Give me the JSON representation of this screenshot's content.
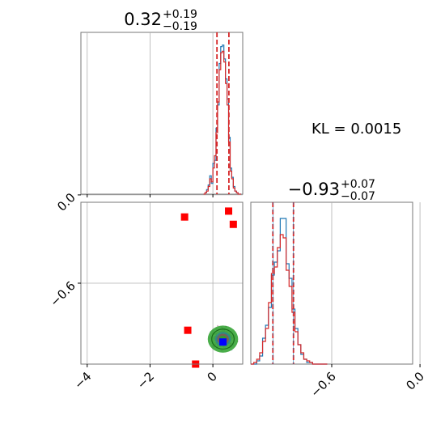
{
  "chart_data": {
    "type": "corner",
    "annotation": "KL = 0.0015",
    "params": [
      {
        "median": "0.32",
        "plus": "+0.19",
        "minus": "−0.19",
        "lo": 0.13,
        "hi": 0.51
      },
      {
        "median": "−0.93",
        "plus": "+0.07",
        "minus": "−0.07",
        "lo": -1.0,
        "hi": -0.86
      }
    ],
    "axes": {
      "x1": {
        "range": [
          -4.2,
          0.95
        ],
        "ticks": [
          -4,
          -2,
          0
        ],
        "tick_labels": [
          "−4",
          "−2",
          "0"
        ]
      },
      "y2": {
        "range": [
          -1.15,
          -0.05
        ],
        "ticks": [
          -0.6,
          0.0
        ],
        "tick_labels": [
          "−0.6",
          "0.0"
        ]
      },
      "x2": {
        "range": [
          -1.15,
          -0.05
        ],
        "ticks": [
          -0.6,
          0.0
        ],
        "tick_labels": [
          "−0.6",
          "0.0"
        ]
      }
    },
    "hist1": {
      "bins": [
        -0.3,
        -0.25,
        -0.2,
        -0.15,
        -0.1,
        -0.05,
        0.0,
        0.05,
        0.1,
        0.15,
        0.2,
        0.25,
        0.3,
        0.35,
        0.4,
        0.45,
        0.5,
        0.55,
        0.6,
        0.65,
        0.7,
        0.75,
        0.8,
        0.85,
        0.9
      ],
      "blue": [
        0.0,
        0.01,
        0.03,
        0.06,
        0.12,
        0.07,
        0.2,
        0.22,
        0.43,
        0.58,
        0.85,
        0.96,
        0.97,
        0.88,
        0.75,
        0.62,
        0.37,
        0.17,
        0.11,
        0.05,
        0.02,
        0.01,
        0.0,
        0.0,
        0.0
      ],
      "red": [
        0.0,
        0.01,
        0.02,
        0.05,
        0.1,
        0.08,
        0.17,
        0.25,
        0.4,
        0.6,
        0.81,
        0.92,
        0.93,
        0.86,
        0.72,
        0.58,
        0.34,
        0.15,
        0.1,
        0.04,
        0.02,
        0.01,
        0.0,
        0.0,
        0.0
      ]
    },
    "hist2": {
      "bins": [
        -1.15,
        -1.13,
        -1.11,
        -1.09,
        -1.07,
        -1.05,
        -1.03,
        -1.01,
        -0.99,
        -0.97,
        -0.95,
        -0.93,
        -0.91,
        -0.89,
        -0.87,
        -0.85,
        -0.83,
        -0.81,
        -0.79,
        -0.77,
        -0.75,
        -0.73,
        -0.71,
        -0.69,
        -0.67,
        -0.65,
        -0.63
      ],
      "blue": [
        0.0,
        0.0,
        0.02,
        0.05,
        0.16,
        0.24,
        0.35,
        0.55,
        0.63,
        0.7,
        0.9,
        0.9,
        0.62,
        0.53,
        0.34,
        0.22,
        0.12,
        0.06,
        0.03,
        0.01,
        0.01,
        0.0,
        0.0,
        0.0,
        0.0,
        0.0
      ],
      "red": [
        0.0,
        0.01,
        0.03,
        0.07,
        0.14,
        0.22,
        0.38,
        0.56,
        0.6,
        0.72,
        0.8,
        0.78,
        0.58,
        0.48,
        0.32,
        0.2,
        0.12,
        0.07,
        0.03,
        0.02,
        0.01,
        0.0,
        0.0,
        0.0,
        0.0,
        0.0
      ]
    },
    "scatter_red_squares": [
      {
        "x": -0.9,
        "y": -0.15
      },
      {
        "x": 0.5,
        "y": -0.11
      },
      {
        "x": 0.65,
        "y": -0.2
      },
      {
        "x": -0.8,
        "y": -0.92
      },
      {
        "x": -0.55,
        "y": -1.15
      }
    ],
    "scatter_blue_square": {
      "x": 0.32,
      "y": -1.0
    },
    "cloud": {
      "cx": 0.32,
      "cy": -0.98,
      "sx": 0.42,
      "sy": 0.08
    },
    "colors": {
      "blue": "#1f77b4",
      "red": "#d62728",
      "green": "#2ca02c",
      "grid": "#b0b0b0"
    }
  }
}
